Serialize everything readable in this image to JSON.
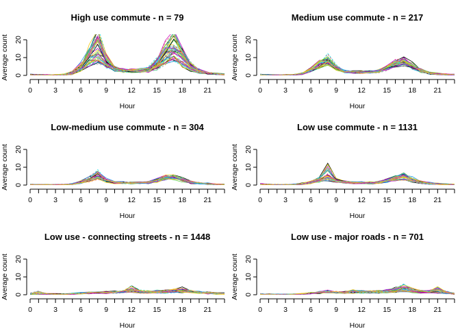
{
  "chart_data": [
    {
      "type": "line",
      "title": "High use commute - n = 79",
      "xlabel": "Hour",
      "ylabel": "Average count",
      "xlim": [
        0,
        23
      ],
      "ylim": [
        0,
        20
      ],
      "x_ticks": [
        0,
        3,
        6,
        9,
        12,
        15,
        18,
        21
      ],
      "y_ticks": [
        0,
        10,
        20
      ],
      "x": [
        0,
        1,
        2,
        3,
        4,
        5,
        6,
        7,
        8,
        9,
        10,
        11,
        12,
        13,
        14,
        15,
        16,
        17,
        18,
        19,
        20,
        21,
        22,
        23
      ],
      "series": [
        {
          "values": [
            0.5,
            0.3,
            0.2,
            0.2,
            0.4,
            1.5,
            5,
            10,
            14,
            8,
            4,
            3,
            2.5,
            2.5,
            3,
            6,
            11,
            14,
            10,
            5,
            2.5,
            1.5,
            1,
            0.8
          ]
        },
        {
          "values": [
            0.3,
            0.2,
            0.1,
            0.1,
            0.3,
            1,
            4,
            14,
            22,
            10,
            4,
            3,
            3,
            3,
            4,
            9,
            17,
            21,
            13,
            6,
            3,
            1.5,
            1,
            0.5
          ]
        },
        {
          "values": [
            0.4,
            0.2,
            0.1,
            0.2,
            0.3,
            1.2,
            3.5,
            8,
            11,
            6,
            3,
            2.5,
            2.5,
            2.5,
            3,
            5,
            9,
            11,
            8,
            4,
            2,
            1,
            0.8,
            0.5
          ]
        },
        {
          "values": [
            0.6,
            0.3,
            0.2,
            0.2,
            0.5,
            2,
            6,
            12,
            18,
            9,
            4,
            3,
            3,
            3,
            3.5,
            7,
            13,
            17,
            12,
            6,
            3,
            1.5,
            1,
            0.7
          ]
        },
        {
          "values": [
            0.5,
            0.2,
            0.1,
            0.1,
            0.2,
            0.8,
            3,
            6,
            8,
            5,
            3,
            2,
            2,
            2,
            2.5,
            4,
            7,
            9,
            6,
            3,
            1.5,
            1,
            0.6,
            0.4
          ]
        },
        {
          "values": [
            0.3,
            0.2,
            0.2,
            0.2,
            0.4,
            1.5,
            5,
            11,
            20,
            9,
            4,
            3,
            2.5,
            2.5,
            3,
            7,
            15,
            19,
            12,
            5,
            2.5,
            1.2,
            0.8,
            0.5
          ]
        }
      ]
    },
    {
      "type": "line",
      "title": "Medium use commute - n = 217",
      "xlabel": "Hour",
      "ylabel": "Average count",
      "xlim": [
        0,
        23
      ],
      "ylim": [
        0,
        20
      ],
      "x_ticks": [
        0,
        3,
        6,
        9,
        12,
        15,
        18,
        21
      ],
      "y_ticks": [
        0,
        10,
        20
      ],
      "x": [
        0,
        1,
        2,
        3,
        4,
        5,
        6,
        7,
        8,
        9,
        10,
        11,
        12,
        13,
        14,
        15,
        16,
        17,
        18,
        19,
        20,
        21,
        22,
        23
      ],
      "series": [
        {
          "values": [
            0.3,
            0.2,
            0.1,
            0.1,
            0.3,
            1,
            3,
            6,
            8,
            4,
            2,
            1.5,
            1.5,
            1.5,
            2,
            4,
            7,
            8,
            5,
            2.5,
            1.5,
            1,
            0.5,
            0.3
          ]
        },
        {
          "values": [
            0.5,
            0.3,
            0.2,
            0.2,
            0.4,
            1.2,
            3.5,
            7,
            10,
            5,
            2.5,
            2,
            2,
            2,
            2.5,
            5,
            8,
            9,
            6,
            3,
            1.5,
            1,
            0.6,
            0.4
          ]
        },
        {
          "values": [
            0.2,
            0.1,
            0.1,
            0.1,
            0.2,
            0.8,
            2.5,
            5,
            7,
            3.5,
            2,
            1.5,
            1.5,
            1.5,
            2,
            3.5,
            6,
            7,
            4.5,
            2,
            1,
            0.7,
            0.4,
            0.3
          ]
        },
        {
          "values": [
            0.4,
            0.2,
            0.1,
            0.1,
            0.3,
            1,
            3,
            6,
            9,
            4.5,
            2.5,
            2,
            2,
            2,
            2.5,
            4.5,
            7.5,
            8.5,
            5.5,
            3,
            1.5,
            1,
            0.5,
            0.3
          ]
        },
        {
          "values": [
            0.3,
            0.2,
            0.1,
            0.2,
            0.3,
            0.9,
            2.8,
            5.5,
            7.5,
            4,
            2,
            1.8,
            1.8,
            1.8,
            2.2,
            4,
            6.5,
            7.5,
            5,
            2.5,
            1.2,
            0.8,
            0.5,
            0.3
          ]
        }
      ]
    },
    {
      "type": "line",
      "title": "Low-medium use commute - n = 304",
      "xlabel": "Hour",
      "ylabel": "Average count",
      "xlim": [
        0,
        23
      ],
      "ylim": [
        0,
        20
      ],
      "x_ticks": [
        0,
        3,
        6,
        9,
        12,
        15,
        18,
        21
      ],
      "y_ticks": [
        0,
        10,
        20
      ],
      "x": [
        0,
        1,
        2,
        3,
        4,
        5,
        6,
        7,
        8,
        9,
        10,
        11,
        12,
        13,
        14,
        15,
        16,
        17,
        18,
        19,
        20,
        21,
        22,
        23
      ],
      "series": [
        {
          "values": [
            0.3,
            0.2,
            0.1,
            0.1,
            0.2,
            0.6,
            1.5,
            3,
            4.5,
            2.5,
            1.5,
            1.2,
            1.2,
            1.2,
            1.5,
            2.5,
            4,
            4.5,
            3,
            1.5,
            1,
            0.6,
            0.4,
            0.3
          ]
        },
        {
          "values": [
            0.4,
            0.2,
            0.1,
            0.1,
            0.2,
            0.7,
            2,
            4,
            7,
            3,
            1.8,
            1.5,
            1.5,
            1.5,
            1.8,
            3,
            4.5,
            5,
            3.5,
            2,
            1.2,
            0.8,
            0.5,
            0.3
          ]
        },
        {
          "values": [
            0.2,
            0.1,
            0.1,
            0.1,
            0.2,
            0.5,
            1.2,
            2.5,
            3.5,
            2,
            1.2,
            1,
            1,
            1,
            1.2,
            2,
            3.5,
            4,
            2.5,
            1.2,
            0.8,
            0.5,
            0.3,
            0.2
          ]
        },
        {
          "values": [
            0.3,
            0.2,
            0.1,
            0.2,
            0.3,
            0.6,
            1.8,
            3.5,
            5,
            2.8,
            1.6,
            1.3,
            1.3,
            1.3,
            1.6,
            2.8,
            4.2,
            5,
            3.2,
            1.8,
            1.1,
            0.7,
            0.4,
            0.3
          ]
        }
      ]
    },
    {
      "type": "line",
      "title": "Low use commute - n = 1131",
      "xlabel": "Hour",
      "ylabel": "Average count",
      "xlim": [
        0,
        23
      ],
      "ylim": [
        0,
        20
      ],
      "x_ticks": [
        0,
        3,
        6,
        9,
        12,
        15,
        18,
        21
      ],
      "y_ticks": [
        0,
        10,
        20
      ],
      "x": [
        0,
        1,
        2,
        3,
        4,
        5,
        6,
        7,
        8,
        9,
        10,
        11,
        12,
        13,
        14,
        15,
        16,
        17,
        18,
        19,
        20,
        21,
        22,
        23
      ],
      "series": [
        {
          "values": [
            0.4,
            0.2,
            0.1,
            0.1,
            0.2,
            0.6,
            1.5,
            3,
            5,
            2.5,
            1.5,
            1.2,
            1.2,
            1.3,
            1.5,
            2.5,
            4,
            5,
            3,
            1.8,
            1,
            0.6,
            0.4,
            0.3
          ]
        },
        {
          "values": [
            0.6,
            0.3,
            0.2,
            0.2,
            0.3,
            0.8,
            2,
            4,
            10,
            3,
            1.8,
            1.5,
            1.5,
            1.5,
            1.8,
            3,
            4.5,
            6,
            4,
            2,
            1.2,
            0.8,
            0.5,
            0.4
          ]
        },
        {
          "values": [
            0.3,
            0.2,
            0.1,
            0.1,
            0.2,
            0.5,
            1.2,
            2.2,
            3,
            2,
            1.3,
            1.1,
            1.1,
            1.1,
            1.3,
            2,
            3,
            3.5,
            2.2,
            1.2,
            0.8,
            0.5,
            0.3,
            0.2
          ]
        },
        {
          "values": [
            0.5,
            0.3,
            0.2,
            0.2,
            0.3,
            0.7,
            1.8,
            3.5,
            7,
            2.8,
            1.7,
            1.4,
            1.4,
            1.4,
            1.7,
            2.8,
            4.2,
            5.5,
            3.5,
            1.9,
            1.1,
            0.7,
            0.5,
            0.3
          ]
        }
      ]
    },
    {
      "type": "line",
      "title": "Low use - connecting streets - n = 1448",
      "xlabel": "Hour",
      "ylabel": "Average count",
      "xlim": [
        0,
        23
      ],
      "ylim": [
        0,
        20
      ],
      "x_ticks": [
        0,
        3,
        6,
        9,
        12,
        15,
        18,
        21
      ],
      "y_ticks": [
        0,
        10,
        20
      ],
      "x": [
        0,
        1,
        2,
        3,
        4,
        5,
        6,
        7,
        8,
        9,
        10,
        11,
        12,
        13,
        14,
        15,
        16,
        17,
        18,
        19,
        20,
        21,
        22,
        23
      ],
      "series": [
        {
          "values": [
            0.5,
            0.4,
            0.3,
            0.3,
            0.3,
            0.5,
            0.8,
            1,
            1.2,
            1.3,
            1.4,
            1.6,
            2,
            1.6,
            1.5,
            1.6,
            1.8,
            2,
            2.2,
            1.8,
            1.4,
            1,
            0.8,
            0.6
          ]
        },
        {
          "values": [
            0.8,
            1.5,
            0.5,
            0.4,
            0.4,
            0.6,
            1,
            1.3,
            1.5,
            1.5,
            1.6,
            2,
            4,
            2,
            1.8,
            2,
            2.2,
            2.6,
            3.5,
            2.2,
            1.6,
            1.2,
            1,
            0.8
          ]
        },
        {
          "values": [
            0.3,
            0.2,
            0.2,
            0.2,
            0.2,
            0.4,
            0.6,
            0.8,
            1,
            1,
            1.1,
            1.2,
            1.5,
            1.2,
            1.1,
            1.2,
            1.4,
            1.6,
            1.7,
            1.4,
            1.1,
            0.8,
            0.6,
            0.4
          ]
        },
        {
          "values": [
            0.6,
            0.5,
            0.4,
            0.3,
            0.3,
            0.5,
            0.9,
            1.1,
            1.3,
            1.4,
            1.5,
            1.8,
            2.5,
            1.8,
            1.6,
            1.8,
            2,
            2.3,
            2.8,
            2,
            1.5,
            1.1,
            0.9,
            0.7
          ]
        }
      ]
    },
    {
      "type": "line",
      "title": "Low use - major roads - n = 701",
      "xlabel": "Hour",
      "ylabel": "Average count",
      "xlim": [
        0,
        23
      ],
      "ylim": [
        0,
        20
      ],
      "x_ticks": [
        0,
        3,
        6,
        9,
        12,
        15,
        18,
        21
      ],
      "y_ticks": [
        0,
        10,
        20
      ],
      "x": [
        0,
        1,
        2,
        3,
        4,
        5,
        6,
        7,
        8,
        9,
        10,
        11,
        12,
        13,
        14,
        15,
        16,
        17,
        18,
        19,
        20,
        21,
        22,
        23
      ],
      "series": [
        {
          "values": [
            0.3,
            0.2,
            0.1,
            0.1,
            0.2,
            0.4,
            0.8,
            1.2,
            1.5,
            1.2,
            1.2,
            1.4,
            1.4,
            1.4,
            1.5,
            1.8,
            2.2,
            2.5,
            2,
            1.5,
            1.5,
            1.6,
            1,
            0.5
          ]
        },
        {
          "values": [
            0.4,
            0.2,
            0.2,
            0.1,
            0.2,
            0.5,
            1,
            1.6,
            2,
            1.5,
            1.5,
            2.5,
            1.8,
            1.8,
            2,
            2.5,
            3.5,
            5,
            3,
            2,
            2,
            3.5,
            1.5,
            0.8
          ]
        },
        {
          "values": [
            0.2,
            0.1,
            0.1,
            0.1,
            0.1,
            0.3,
            0.6,
            1,
            1.2,
            1,
            1,
            1.1,
            1.1,
            1.1,
            1.2,
            1.4,
            1.8,
            2,
            1.6,
            1.2,
            1.2,
            1.3,
            0.8,
            0.4
          ]
        },
        {
          "values": [
            0.3,
            0.2,
            0.1,
            0.1,
            0.2,
            0.4,
            0.9,
            1.4,
            1.8,
            1.3,
            1.3,
            1.7,
            1.5,
            1.5,
            1.7,
            2.1,
            2.8,
            3.8,
            2.5,
            1.8,
            1.7,
            2.4,
            1.2,
            0.6
          ]
        }
      ]
    }
  ],
  "colors": {
    "series": [
      "#000000",
      "#DF536B",
      "#61D04F",
      "#2297E6",
      "#28E2E5",
      "#CD0BBC",
      "#F5C710",
      "#9E9E9E"
    ],
    "axis": "#000000",
    "background": "#FFFFFF"
  }
}
